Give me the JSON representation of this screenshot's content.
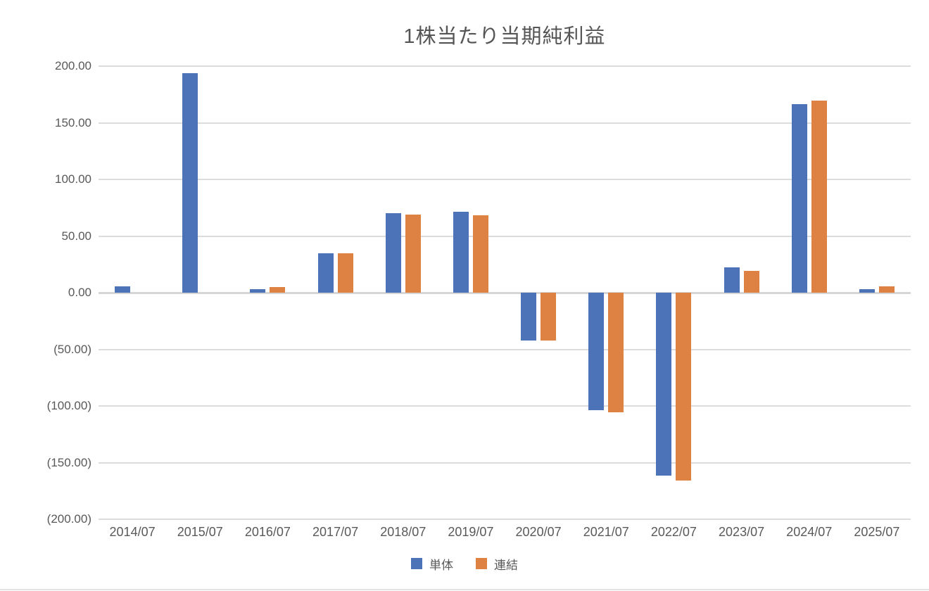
{
  "chart_data": {
    "type": "bar",
    "title": "1株当たり当期純利益",
    "categories": [
      "2014/07",
      "2015/07",
      "2016/07",
      "2017/07",
      "2018/07",
      "2019/07",
      "2020/07",
      "2021/07",
      "2022/07",
      "2023/07",
      "2024/07",
      "2025/07"
    ],
    "series": [
      {
        "name": "単体",
        "color": "#4c72b8",
        "values": [
          5.8,
          194.0,
          3.2,
          35.0,
          70.0,
          71.5,
          -42.5,
          -103.5,
          -161.5,
          22.5,
          166.5,
          3.3
        ]
      },
      {
        "name": "連結",
        "color": "#de8243",
        "values": [
          null,
          null,
          5.0,
          35.0,
          69.0,
          68.5,
          -42.5,
          -105.5,
          -166.0,
          19.5,
          169.5,
          5.5
        ]
      }
    ],
    "ylim": [
      -200,
      200
    ],
    "ytick_step": 50,
    "ytick_labels": [
      "200.00",
      "150.00",
      "100.00",
      "50.00",
      "0.00",
      "(50.00)",
      "(100.00)",
      "(150.00)",
      "(200.00)"
    ],
    "grid": true,
    "legend_position": "bottom",
    "xlabel": "",
    "ylabel": ""
  }
}
